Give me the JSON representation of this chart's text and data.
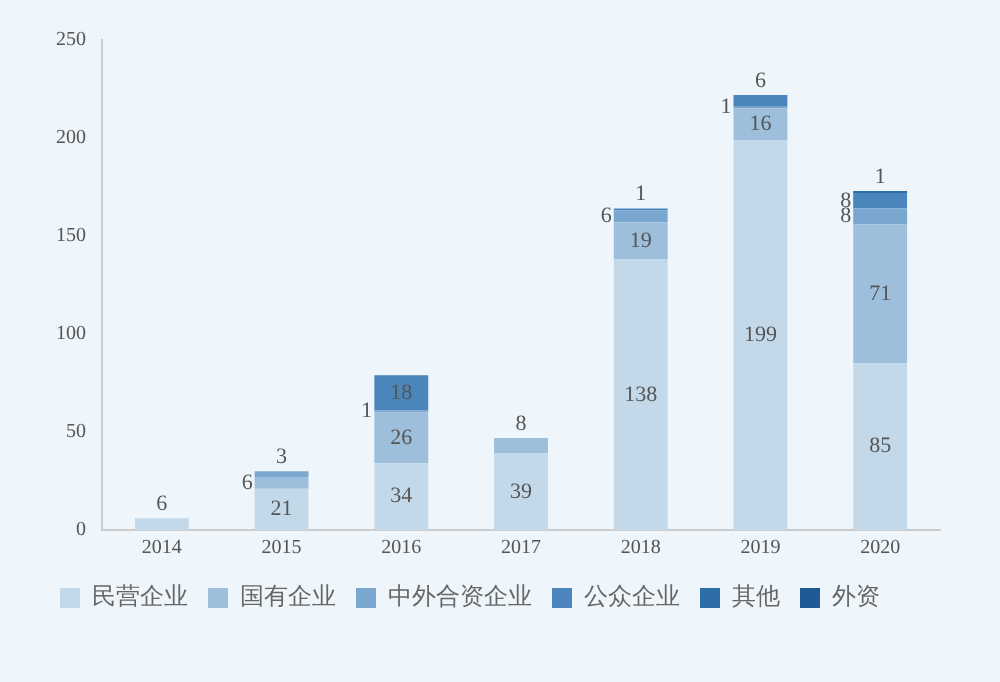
{
  "chart_data": {
    "type": "bar",
    "stacked": true,
    "categories": [
      "2014",
      "2015",
      "2016",
      "2017",
      "2018",
      "2019",
      "2020"
    ],
    "series": [
      {
        "name": "民营企业",
        "color": "#c3d9ea",
        "values": [
          6,
          21,
          34,
          39,
          138,
          199,
          85
        ]
      },
      {
        "name": "国有企业",
        "color": "#9dbfdc",
        "values": [
          null,
          6,
          26,
          8,
          19,
          16,
          71
        ]
      },
      {
        "name": "中外合资企业",
        "color": "#7aa7cf",
        "values": [
          null,
          3,
          1,
          null,
          6,
          1,
          8
        ]
      },
      {
        "name": "公众企业",
        "color": "#4a86bb",
        "values": [
          null,
          null,
          18,
          null,
          1,
          6,
          8
        ]
      },
      {
        "name": "其他",
        "color": "#2e6ea8",
        "values": [
          null,
          null,
          null,
          null,
          null,
          null,
          1
        ]
      },
      {
        "name": "外资",
        "color": "#1f5a96",
        "values": [
          null,
          null,
          null,
          null,
          null,
          null,
          null
        ]
      }
    ],
    "ylim": [
      0,
      250
    ],
    "yticks": [
      0,
      50,
      100,
      150,
      200,
      250
    ],
    "grid": false,
    "legend": "bottom",
    "data_labels": true
  }
}
